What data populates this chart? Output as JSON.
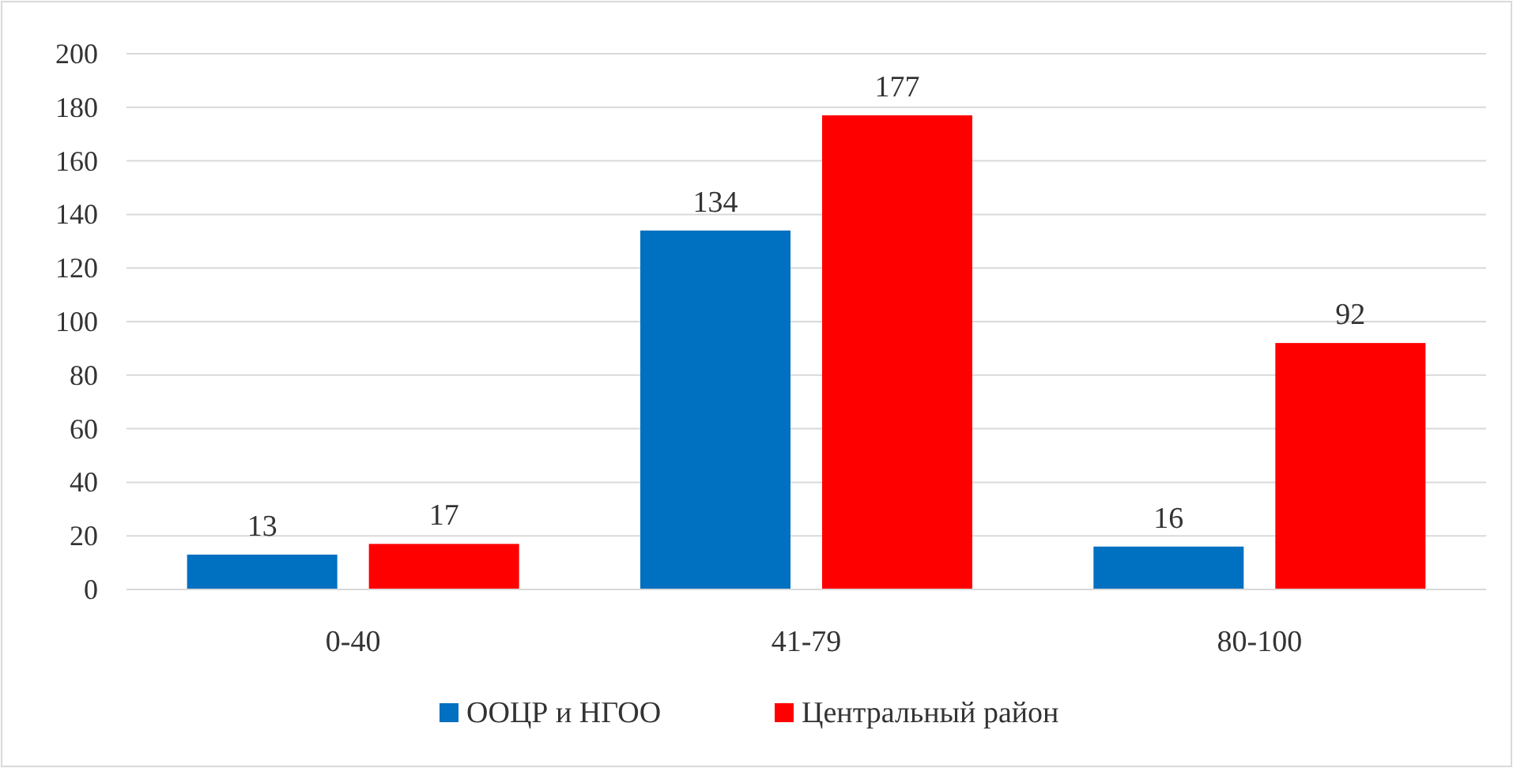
{
  "chart_data": {
    "type": "bar",
    "categories": [
      "0-40",
      "41-79",
      "80-100"
    ],
    "series": [
      {
        "name": "ООЦР и НГОО",
        "color": "#0070c0",
        "values": [
          13,
          134,
          16
        ]
      },
      {
        "name": "Центральный район",
        "color": "#ff0000",
        "values": [
          17,
          177,
          92
        ]
      }
    ],
    "ylim": [
      0,
      200
    ],
    "yticks": [
      0,
      20,
      40,
      60,
      80,
      100,
      120,
      140,
      160,
      180,
      200
    ],
    "grid": "y",
    "data_labels": true,
    "legend": "bottom"
  }
}
